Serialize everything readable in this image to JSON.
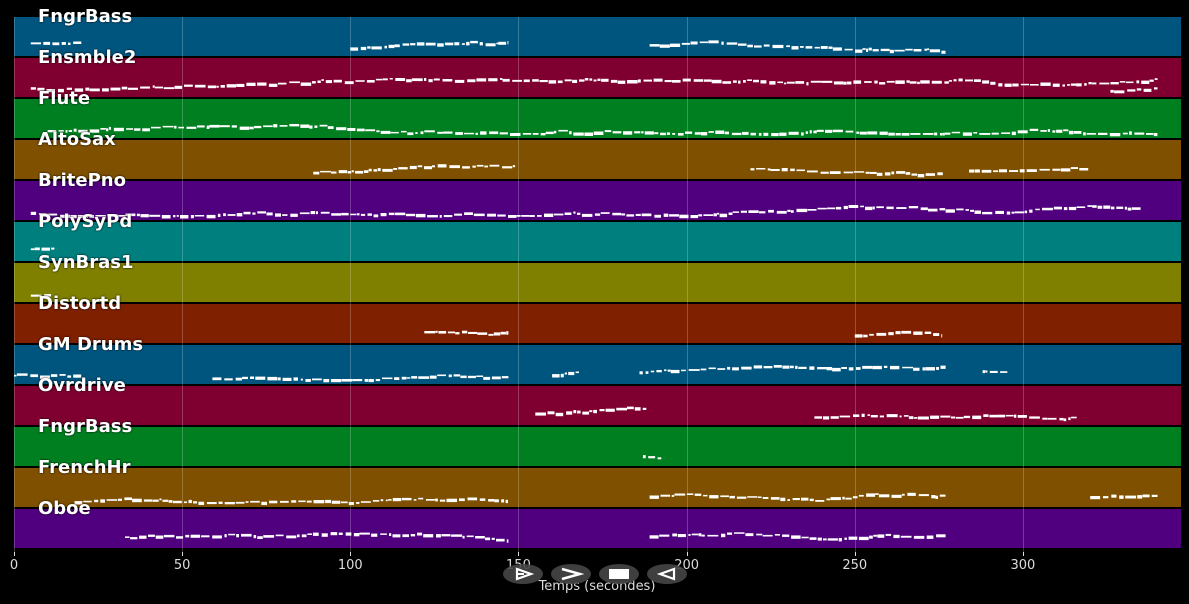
{
  "tracks": [
    {
      "name": "FngrBass",
      "color": "#00557f"
    },
    {
      "name": "Ensmble2",
      "color": "#7f0030"
    },
    {
      "name": "Flute",
      "color": "#007f20"
    },
    {
      "name": "AltoSax",
      "color": "#7f5000"
    },
    {
      "name": "BritePno",
      "color": "#50007f"
    },
    {
      "name": "PolySyPd",
      "color": "#007f7f"
    },
    {
      "name": "SynBras1",
      "color": "#7f7f00"
    },
    {
      "name": "Distortd",
      "color": "#7f2000"
    },
    {
      "name": "GM Drums",
      "color": "#00557f"
    },
    {
      "name": "Ovrdrive",
      "color": "#7f0030"
    },
    {
      "name": "FngrBass",
      "color": "#007f20"
    },
    {
      "name": "FrenchHr",
      "color": "#7f5000"
    },
    {
      "name": "Oboe",
      "color": "#50007f"
    }
  ],
  "note_segments": [
    [
      [
        5,
        20
      ],
      [
        100,
        147
      ],
      [
        189,
        277
      ]
    ],
    [
      [
        5,
        340
      ],
      [
        326,
        340
      ]
    ],
    [
      [
        10,
        340
      ]
    ],
    [
      [
        89,
        149
      ],
      [
        219,
        277
      ],
      [
        284,
        320
      ]
    ],
    [
      [
        5,
        335
      ]
    ],
    [
      [
        5,
        12
      ]
    ],
    [
      [
        5,
        11
      ]
    ],
    [
      [
        122,
        147
      ],
      [
        250,
        276
      ]
    ],
    [
      [
        0,
        20
      ],
      [
        59,
        147
      ],
      [
        160,
        168
      ],
      [
        186,
        277
      ],
      [
        288,
        296
      ]
    ],
    [
      [
        155,
        188
      ],
      [
        238,
        316
      ]
    ],
    [
      [
        187,
        193
      ]
    ],
    [
      [
        18,
        147
      ],
      [
        189,
        277
      ],
      [
        320,
        340
      ]
    ],
    [
      [
        33,
        147
      ],
      [
        189,
        277
      ]
    ]
  ],
  "x_axis": {
    "label": "Temps (secondes)",
    "ticks": [
      "0",
      "50",
      "100",
      "150",
      "200",
      "250",
      "300"
    ],
    "tick_values": [
      0,
      50,
      100,
      150,
      200,
      250,
      300
    ],
    "range": [
      0,
      347
    ]
  },
  "controls": [
    {
      "icon": "play-icon"
    },
    {
      "icon": "fast-forward-icon"
    },
    {
      "icon": "stop-icon"
    },
    {
      "icon": "rewind-icon"
    }
  ]
}
